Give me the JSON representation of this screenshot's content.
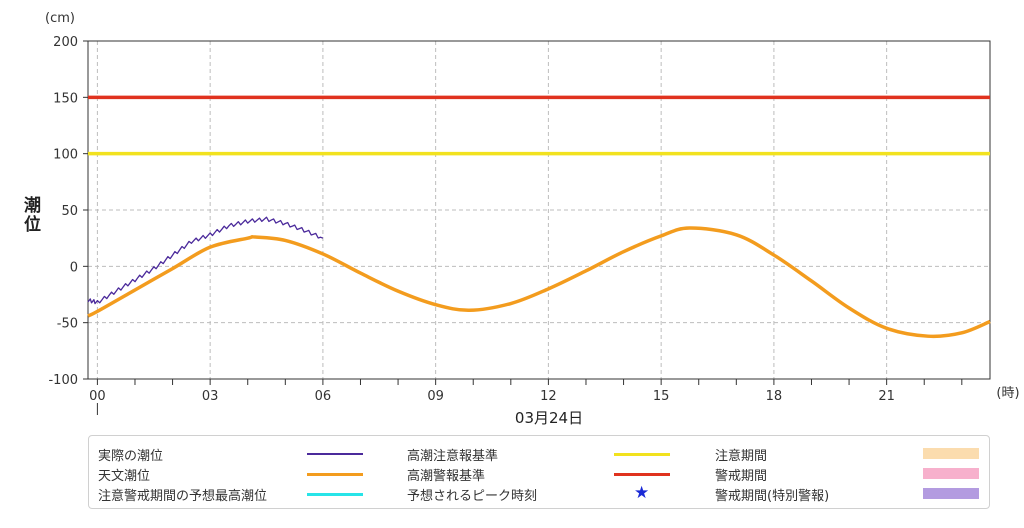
{
  "chart_data": {
    "type": "line",
    "y_unit": "(cm)",
    "ylabel": "潮位",
    "x_unit": "(時)",
    "date_label": "03月24日",
    "ylim": [
      -100,
      200
    ],
    "yticks": [
      "200",
      "150",
      "100",
      "50",
      "0",
      "-50",
      "-100"
    ],
    "xlim": [
      -0.25,
      23.75
    ],
    "xticks": [
      "00",
      "03",
      "06",
      "09",
      "12",
      "15",
      "18",
      "21"
    ],
    "grid": true,
    "series": [
      {
        "name": "天文潮位",
        "color": "#f39c1e",
        "x": [
          -0.25,
          0,
          1,
          2,
          3,
          4,
          4.2,
          5,
          6,
          7,
          8,
          9,
          9.9,
          11,
          12,
          13,
          14,
          15,
          15.75,
          17,
          18,
          19,
          20,
          21,
          22.1,
          23,
          23.75
        ],
        "y": [
          -44,
          -40,
          -21,
          -2,
          17,
          25,
          26,
          23,
          11,
          -6,
          -22,
          -34,
          -39,
          -33,
          -20,
          -4,
          13,
          27,
          34,
          28,
          10,
          -13,
          -37,
          -55,
          -62,
          -59,
          -49
        ]
      },
      {
        "name": "実際の潮位",
        "color": "#4b2a9b",
        "x": [
          -0.25,
          0,
          0.5,
          1,
          1.5,
          2,
          2.5,
          3,
          3.5,
          4,
          4.5,
          5,
          5.5,
          6
        ],
        "y": [
          -30,
          -32,
          -22,
          -12,
          -2,
          10,
          22,
          28,
          36,
          40,
          42,
          38,
          32,
          25
        ]
      },
      {
        "name": "高潮注意報基準",
        "color": "#f2e21e",
        "x": [
          -0.25,
          23.75
        ],
        "y": [
          100,
          100
        ]
      },
      {
        "name": "高潮警報基準",
        "color": "#e0321e",
        "x": [
          -0.25,
          23.75
        ],
        "y": [
          150,
          150
        ]
      }
    ]
  },
  "legend": {
    "items": [
      {
        "label": "実際の潮位",
        "color": "#4b2a9b",
        "kind": "line-thin"
      },
      {
        "label": "天文潮位",
        "color": "#f39c1e",
        "kind": "line"
      },
      {
        "label": "注意警戒期間の予想最高潮位",
        "color": "#27e4e8",
        "kind": "line"
      },
      {
        "label": "高潮注意報基準",
        "color": "#f2e21e",
        "kind": "line"
      },
      {
        "label": "高潮警報基準",
        "color": "#e0321e",
        "kind": "line"
      },
      {
        "label": "予想されるピーク時刻",
        "color": "#1a2ad6",
        "kind": "star",
        "glyph": "★"
      },
      {
        "label": "注意期間",
        "color": "#fbdcae",
        "kind": "box"
      },
      {
        "label": "警戒期間",
        "color": "#f7b0cc",
        "kind": "box"
      },
      {
        "label": "警戒期間(特別警報)",
        "color": "#b39be0",
        "kind": "box"
      }
    ]
  }
}
